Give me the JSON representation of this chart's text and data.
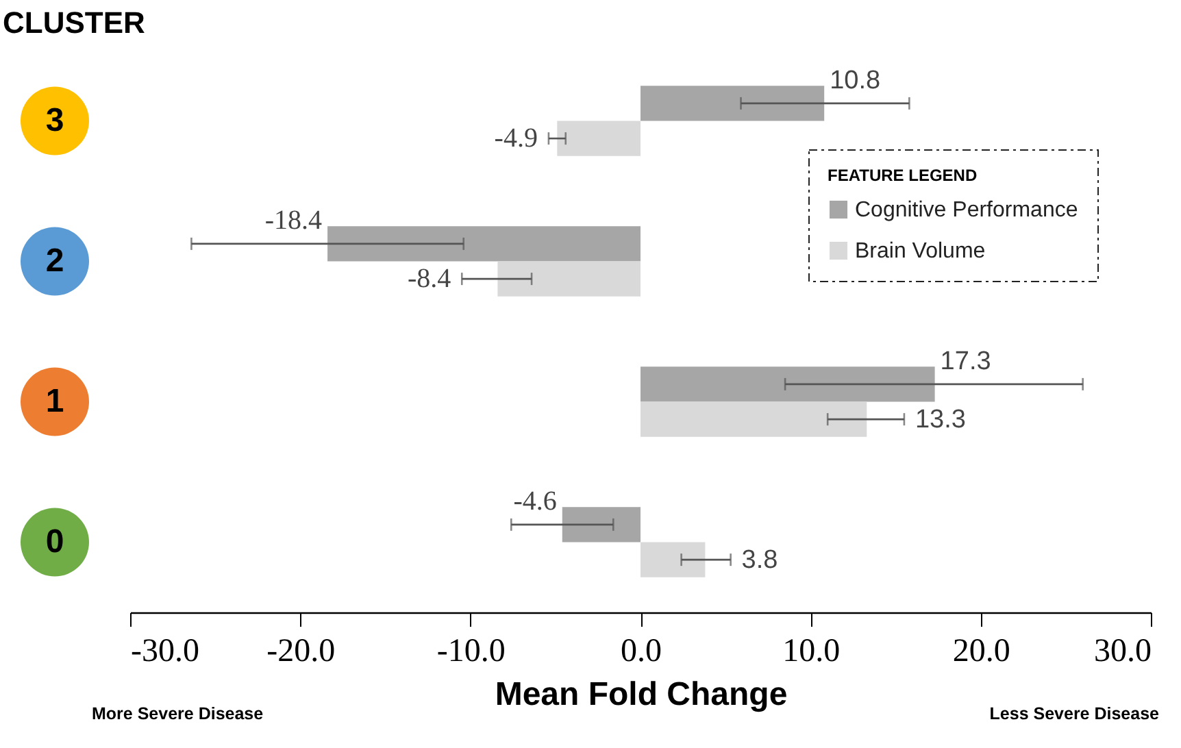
{
  "chart_data": {
    "type": "bar",
    "orientation": "horizontal",
    "ylabel": "CLUSTER",
    "xlabel": "Mean Fold Change",
    "categories": [
      "3",
      "2",
      "1",
      "0"
    ],
    "series": [
      {
        "name": "Cognitive Performance",
        "color": "#a6a6a6",
        "values": [
          10.8,
          -18.4,
          17.3,
          -4.6
        ],
        "errors": [
          [
            5.9,
            15.8
          ],
          [
            -26.4,
            -10.4
          ],
          [
            8.5,
            26.0
          ],
          [
            -7.6,
            -1.6
          ]
        ]
      },
      {
        "name": "Brain Volume",
        "color": "#d9d9d9",
        "values": [
          -4.9,
          -8.4,
          13.3,
          3.8
        ],
        "errors": [
          [
            -5.4,
            -4.4
          ],
          [
            -10.5,
            -6.4
          ],
          [
            11.0,
            15.5
          ],
          [
            2.4,
            5.3
          ]
        ]
      }
    ],
    "xlim": [
      -30,
      30
    ],
    "xticks": [
      {
        "value": -30,
        "label": "-30.0"
      },
      {
        "value": -20,
        "label": "-20.0"
      },
      {
        "value": -10,
        "label": "-10.0"
      },
      {
        "value": 0,
        "label": "0.0"
      },
      {
        "value": 10,
        "label": "10.0"
      },
      {
        "value": 20,
        "label": "20.0"
      },
      {
        "value": 30,
        "label": "30.0"
      }
    ],
    "legend_title": "FEATURE LEGEND",
    "legend": "top right",
    "data_labels": true,
    "grid": false,
    "annotations": [
      "More Severe Disease",
      "Less Severe Disease"
    ]
  }
}
